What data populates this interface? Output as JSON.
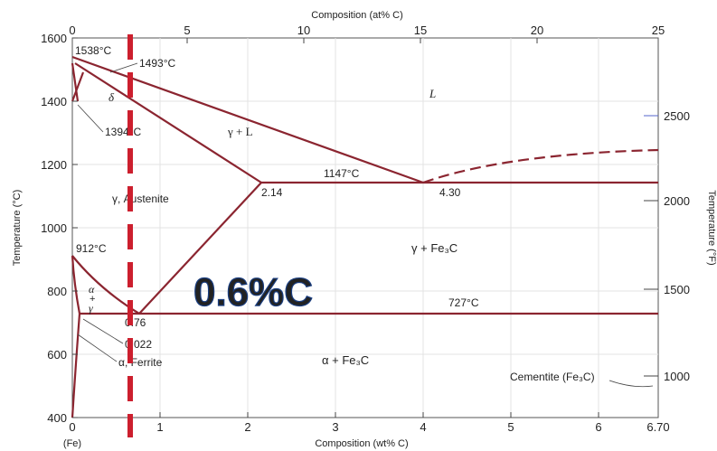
{
  "top_axis": {
    "label": "Composition (at% C)",
    "ticks": [
      "0",
      "5",
      "10",
      "15",
      "20",
      "25"
    ]
  },
  "bottom_axis": {
    "label": "Composition (wt% C)",
    "ticks": [
      "0",
      "1",
      "2",
      "3",
      "4",
      "5",
      "6",
      "6.70"
    ],
    "fe_label": "(Fe)"
  },
  "left_axis": {
    "label": "Temperature (°C)",
    "ticks": [
      "1600",
      "1400",
      "1200",
      "1000",
      "800",
      "600",
      "400"
    ]
  },
  "right_axis": {
    "label": "Temperature (°F)",
    "ticks": [
      "2500",
      "2000",
      "1500",
      "1000"
    ]
  },
  "annotations": {
    "t1538": "1538°C",
    "t1493": "1493°C",
    "t1394": "1394°C",
    "t1147": "1147°C",
    "t912": "912°C",
    "t727": "727°C",
    "c214": "2.14",
    "c430": "4.30",
    "c076": "0.76",
    "c0022": "0.022",
    "delta": "δ",
    "L": "L",
    "gammaL": "γ + L",
    "austenite": "γ, Austenite",
    "gammaFe3C": "γ + Fe₃C",
    "alpha": "α",
    "plus": "+",
    "gamma": "γ",
    "ferrite": "α, Ferrite",
    "alphaFe3C": "α + Fe₃C",
    "cementite": "Cementite (Fe₃C)"
  },
  "highlight": {
    "label": "0.6%C",
    "color": "#2a5db0",
    "line_color": "#cc1f2e"
  },
  "colors": {
    "phase_line": "#8b2530",
    "axis": "#333333"
  }
}
